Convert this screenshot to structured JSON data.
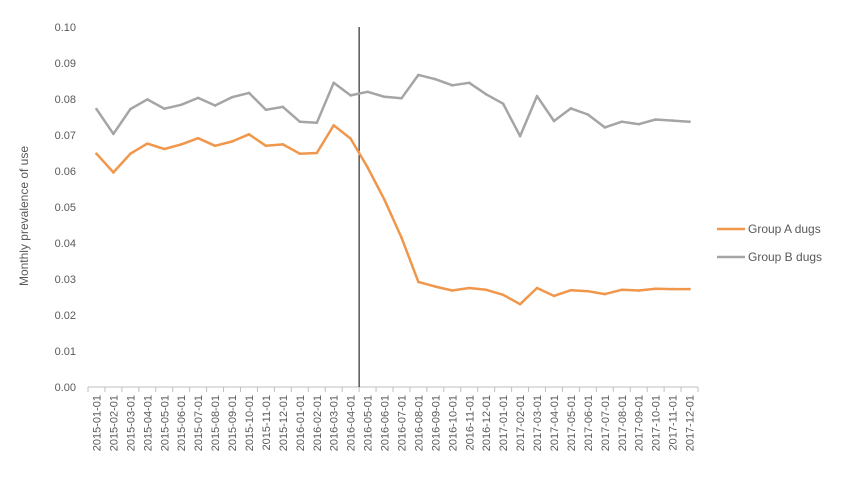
{
  "chart_data": {
    "type": "line",
    "ylabel": "Monthly prevalence of use",
    "xlabel": "",
    "ylim": [
      0,
      0.1
    ],
    "y_ticks": [
      "0.00",
      "0.01",
      "0.02",
      "0.03",
      "0.04",
      "0.05",
      "0.06",
      "0.07",
      "0.08",
      "0.09",
      "0.10"
    ],
    "grid": false,
    "legend_position": "right",
    "intervention_line_after": "2016-04-01",
    "categories": [
      "2015-01-01",
      "2015-02-01",
      "2015-03-01",
      "2015-04-01",
      "2015-05-01",
      "2015-06-01",
      "2015-07-01",
      "2015-08-01",
      "2015-09-01",
      "2015-10-01",
      "2015-11-01",
      "2015-12-01",
      "2016-01-01",
      "2016-02-01",
      "2016-03-01",
      "2016-04-01",
      "2016-05-01",
      "2016-06-01",
      "2016-07-01",
      "2016-08-01",
      "2016-09-01",
      "2016-10-01",
      "2016-11-01",
      "2016-12-01",
      "2017-01-01",
      "2017-02-01",
      "2017-03-01",
      "2017-04-01",
      "2017-05-01",
      "2017-06-01",
      "2017-07-01",
      "2017-08-01",
      "2017-09-01",
      "2017-10-01",
      "2017-11-01",
      "2017-12-01"
    ],
    "series": [
      {
        "name": "Group A dugs",
        "color": "#F0974C",
        "values": [
          0.0648,
          0.0596,
          0.0648,
          0.0676,
          0.0661,
          0.0674,
          0.0691,
          0.067,
          0.0682,
          0.0702,
          0.067,
          0.0674,
          0.0648,
          0.065,
          0.0727,
          0.069,
          0.061,
          0.052,
          0.0415,
          0.0292,
          0.0279,
          0.0268,
          0.0275,
          0.027,
          0.0256,
          0.023,
          0.0275,
          0.0253,
          0.0269,
          0.0266,
          0.0258,
          0.027,
          0.0268,
          0.0273,
          0.0272,
          0.0272
        ]
      },
      {
        "name": "Group B dugs",
        "color": "#A5A5A5",
        "values": [
          0.0772,
          0.0703,
          0.0772,
          0.0799,
          0.0773,
          0.0784,
          0.0803,
          0.0782,
          0.0805,
          0.0817,
          0.077,
          0.0778,
          0.0737,
          0.0734,
          0.0845,
          0.081,
          0.082,
          0.0806,
          0.0802,
          0.0867,
          0.0855,
          0.0838,
          0.0845,
          0.0813,
          0.0787,
          0.0697,
          0.0808,
          0.0739,
          0.0774,
          0.0757,
          0.0721,
          0.0737,
          0.073,
          0.0743,
          0.074,
          0.0737
        ]
      }
    ]
  }
}
